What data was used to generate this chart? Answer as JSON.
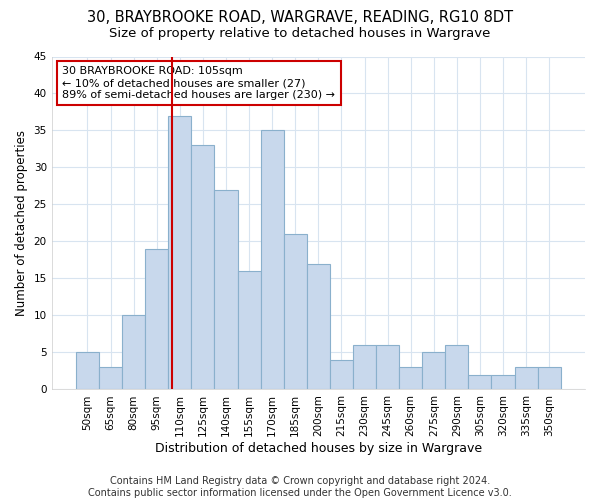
{
  "title1": "30, BRAYBROOKE ROAD, WARGRAVE, READING, RG10 8DT",
  "title2": "Size of property relative to detached houses in Wargrave",
  "xlabel": "Distribution of detached houses by size in Wargrave",
  "ylabel": "Number of detached properties",
  "footer": "Contains HM Land Registry data © Crown copyright and database right 2024.\nContains public sector information licensed under the Open Government Licence v3.0.",
  "categories": [
    "50sqm",
    "65sqm",
    "80sqm",
    "95sqm",
    "110sqm",
    "125sqm",
    "140sqm",
    "155sqm",
    "170sqm",
    "185sqm",
    "200sqm",
    "215sqm",
    "230sqm",
    "245sqm",
    "260sqm",
    "275sqm",
    "290sqm",
    "305sqm",
    "320sqm",
    "335sqm",
    "350sqm"
  ],
  "values": [
    5,
    3,
    10,
    19,
    37,
    33,
    27,
    16,
    35,
    21,
    17,
    4,
    6,
    6,
    3,
    5,
    6,
    2,
    2,
    3,
    3
  ],
  "bar_color": "#c8d8ec",
  "bar_edge_color": "#8ab0cc",
  "ylim": [
    0,
    45
  ],
  "yticks": [
    0,
    5,
    10,
    15,
    20,
    25,
    30,
    35,
    40,
    45
  ],
  "annotation_title": "30 BRAYBROOKE ROAD: 105sqm",
  "annotation_line1": "← 10% of detached houses are smaller (27)",
  "annotation_line2": "89% of semi-detached houses are larger (230) →",
  "annotation_box_color": "#ffffff",
  "annotation_border_color": "#cc0000",
  "property_line_color": "#cc0000",
  "background_color": "#ffffff",
  "grid_color": "#d8e4f0",
  "title1_fontsize": 10.5,
  "title2_fontsize": 9.5,
  "xlabel_fontsize": 9,
  "ylabel_fontsize": 8.5,
  "tick_fontsize": 7.5,
  "annotation_fontsize": 8,
  "footer_fontsize": 7
}
